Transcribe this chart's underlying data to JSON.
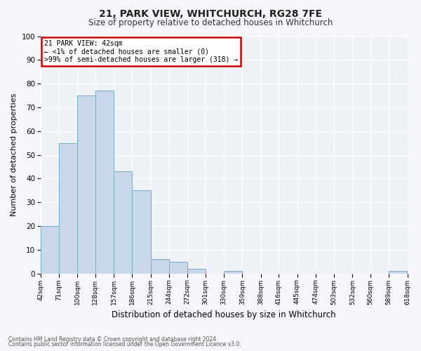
{
  "title": "21, PARK VIEW, WHITCHURCH, RG28 7FE",
  "subtitle": "Size of property relative to detached houses in Whitchurch",
  "xlabel": "Distribution of detached houses by size in Whitchurch",
  "ylabel": "Number of detached properties",
  "bar_color": "#c8d8ea",
  "bar_edge_color": "#7aaac8",
  "background_color": "#eef2f7",
  "fig_background": "#f5f7fa",
  "bins": [
    42,
    71,
    100,
    128,
    157,
    186,
    215,
    244,
    272,
    301,
    330,
    359,
    388,
    416,
    445,
    474,
    503,
    532,
    560,
    589,
    618
  ],
  "counts": [
    20,
    55,
    75,
    77,
    43,
    35,
    6,
    5,
    2,
    0,
    1,
    0,
    0,
    0,
    0,
    0,
    0,
    0,
    0,
    1
  ],
  "tick_labels": [
    "42sqm",
    "71sqm",
    "100sqm",
    "128sqm",
    "157sqm",
    "186sqm",
    "215sqm",
    "244sqm",
    "272sqm",
    "301sqm",
    "330sqm",
    "359sqm",
    "388sqm",
    "416sqm",
    "445sqm",
    "474sqm",
    "503sqm",
    "532sqm",
    "560sqm",
    "589sqm",
    "618sqm"
  ],
  "ylim": [
    0,
    100
  ],
  "yticks": [
    0,
    10,
    20,
    30,
    40,
    50,
    60,
    70,
    80,
    90,
    100
  ],
  "annotation_title": "21 PARK VIEW: 42sqm",
  "annotation_line1": "← <1% of detached houses are smaller (0)",
  "annotation_line2": ">99% of semi-detached houses are larger (318) →",
  "annotation_box_facecolor": "#ffffff",
  "annotation_box_edgecolor": "#cc0000",
  "footnote1": "Contains HM Land Registry data © Crown copyright and database right 2024.",
  "footnote2": "Contains public sector information licensed under the Open Government Licence v3.0.",
  "title_fontsize": 10,
  "subtitle_fontsize": 8.5,
  "ylabel_fontsize": 8,
  "xlabel_fontsize": 8.5,
  "tick_fontsize": 6.5,
  "ytick_fontsize": 7.5,
  "annot_fontsize": 7,
  "footnote_fontsize": 5.5
}
